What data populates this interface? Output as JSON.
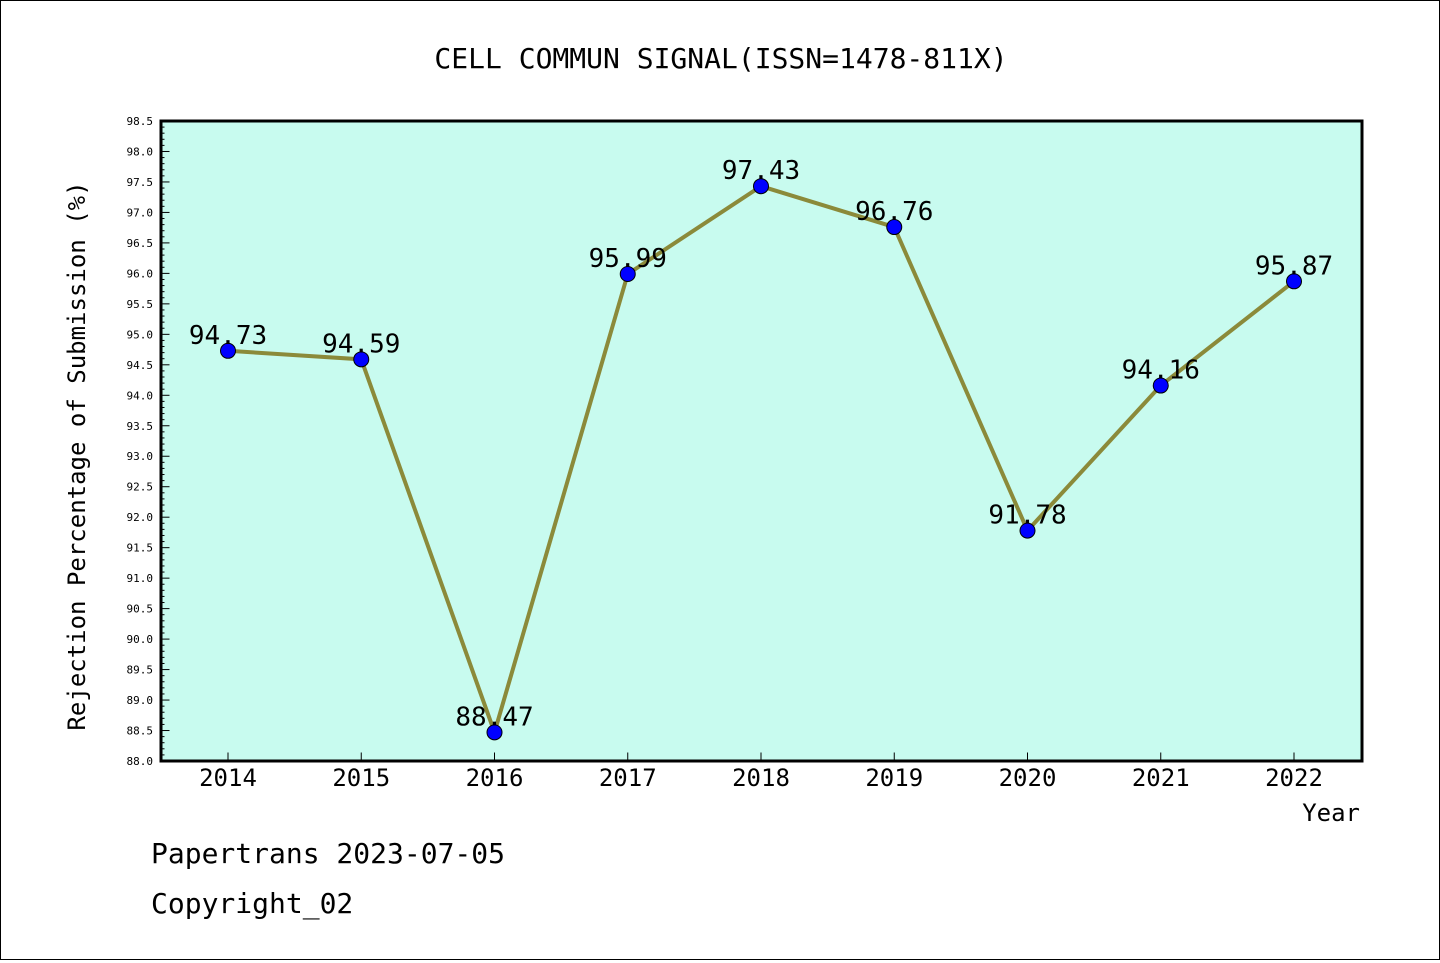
{
  "chart_data": {
    "type": "line",
    "title": "CELL COMMUN SIGNAL(ISSN=1478-811X)",
    "xlabel": "Year",
    "ylabel": "Rejection Percentage of Submission (%)",
    "categories": [
      "2014",
      "2015",
      "2016",
      "2017",
      "2018",
      "2019",
      "2020",
      "2021",
      "2022"
    ],
    "values": [
      94.73,
      94.59,
      88.47,
      95.99,
      97.43,
      96.76,
      91.78,
      94.16,
      95.87
    ],
    "data_labels": [
      "94.73",
      "94.59",
      "88.47",
      "95.99",
      "97.43",
      "96.76",
      "91.78",
      "94.16",
      "95.87"
    ],
    "ylim": [
      88.0,
      98.5
    ],
    "yticks": [
      "88.0",
      "88.5",
      "89.0",
      "89.5",
      "90.0",
      "90.5",
      "91.0",
      "91.5",
      "92.0",
      "92.5",
      "93.0",
      "93.5",
      "94.0",
      "94.5",
      "95.0",
      "95.5",
      "96.0",
      "96.5",
      "97.0",
      "97.5",
      "98.0",
      "98.5"
    ],
    "grid": false,
    "colors": {
      "plot_background": "#c8fbef",
      "line": "#8b8a3a",
      "marker": "#0000ff"
    }
  },
  "footer": {
    "line1": "Papertrans 2023-07-05",
    "line2": "Copyright_02"
  }
}
